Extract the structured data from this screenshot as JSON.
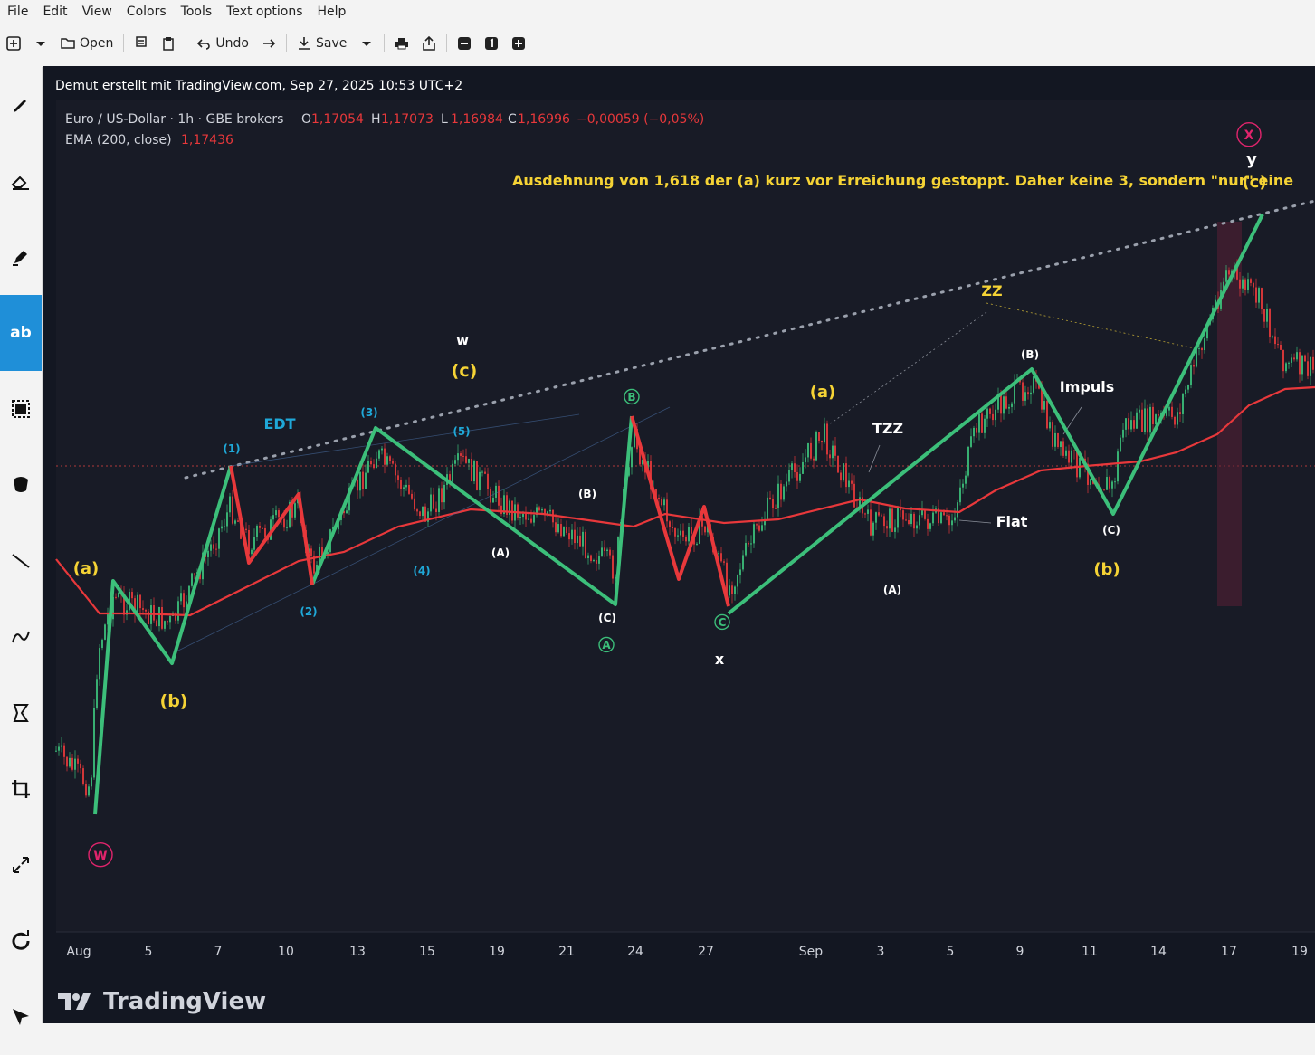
{
  "menu": [
    "File",
    "Edit",
    "View",
    "Colors",
    "Tools",
    "Text options",
    "Help"
  ],
  "toolbar": {
    "open_label": "Open",
    "undo_label": "Undo",
    "save_label": "Save"
  },
  "tools": [
    "pencil-icon",
    "eraser-icon",
    "highlighter-icon",
    "text-icon",
    "rectangle-select-icon",
    "free-select-icon",
    "line-icon",
    "curve-icon",
    "shape-icon",
    "crop-icon",
    "scale-icon",
    "rotate-icon",
    "skew-icon"
  ],
  "tools_text": {
    "text_tool_label": "ab"
  },
  "chart": {
    "header": "Demut erstellt mit TradingView.com, Sep 27, 2025 10:53 UTC+2",
    "symbol": "Euro / US-Dollar · 1h · GBE brokers",
    "o_label": "O",
    "o_value": "1,17054",
    "h_label": "H",
    "h_value": "1,17073",
    "l_label": "L",
    "l_value": "1,16984",
    "c_label": "C",
    "c_value": "1,16996",
    "change": "−0,00059 (−0,05%)",
    "ema_label": "EMA (200, close)",
    "ema_value": "1,17436",
    "annotation": "Ausdehnung von 1,618 der (a) kurz vor Erreichung gestoppt. Daher keine 3, sondern \"nur\" eine",
    "brand": "TradingView",
    "colors": {
      "background": "#181b26",
      "bull": "#3cbf7a",
      "bear": "#e8383b",
      "ema": "#e8383b",
      "yellow": "#f5d335",
      "cyan": "#1fa8d8",
      "magenta": "#e0246c"
    }
  },
  "chart_data": {
    "type": "line",
    "title": "",
    "x_ticks": [
      "Aug",
      "5",
      "7",
      "10",
      "13",
      "15",
      "19",
      "21",
      "24",
      "27",
      "Sep",
      "3",
      "5",
      "9",
      "11",
      "14",
      "17",
      "19"
    ],
    "wave_labels": [
      {
        "text": "(a)",
        "color": "yellow"
      },
      {
        "text": "(b)",
        "color": "yellow"
      },
      {
        "text": "EDT",
        "color": "cyan"
      },
      {
        "text": "(1)",
        "color": "cyan"
      },
      {
        "text": "(2)",
        "color": "cyan"
      },
      {
        "text": "(3)",
        "color": "cyan"
      },
      {
        "text": "(4)",
        "color": "cyan"
      },
      {
        "text": "(5)",
        "color": "cyan"
      },
      {
        "text": "w",
        "color": "white"
      },
      {
        "text": "(c)",
        "color": "yellow"
      },
      {
        "text": "(A)",
        "color": "white"
      },
      {
        "text": "(B)",
        "color": "white"
      },
      {
        "text": "(C)",
        "color": "white"
      },
      {
        "text": "B",
        "color": "green"
      },
      {
        "text": "A",
        "color": "green"
      },
      {
        "text": "C",
        "color": "green"
      },
      {
        "text": "x",
        "color": "white"
      },
      {
        "text": "(a)",
        "color": "yellow"
      },
      {
        "text": "TZZ",
        "color": "white"
      },
      {
        "text": "(A)",
        "color": "white"
      },
      {
        "text": "Flat",
        "color": "white"
      },
      {
        "text": "ZZ",
        "color": "yellow"
      },
      {
        "text": "(B)",
        "color": "white"
      },
      {
        "text": "Impuls",
        "color": "white"
      },
      {
        "text": "(C)",
        "color": "white"
      },
      {
        "text": "(b)",
        "color": "yellow"
      },
      {
        "text": "y",
        "color": "white"
      },
      {
        "text": "(c)",
        "color": "yellow"
      },
      {
        "text": "W",
        "color": "magenta"
      },
      {
        "text": "X",
        "color": "magenta"
      }
    ]
  }
}
